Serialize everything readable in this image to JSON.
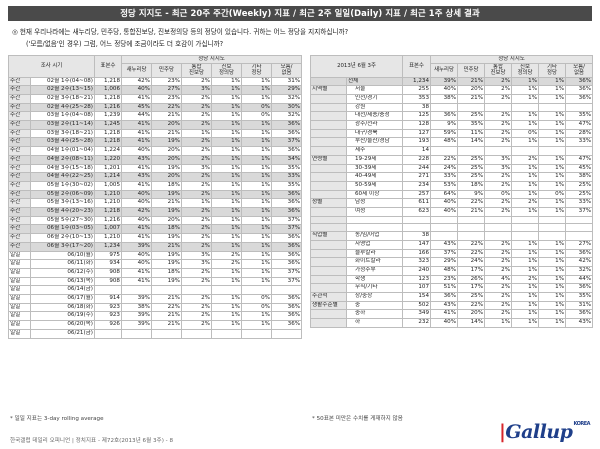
{
  "title": "정당 지지도 - 최근 20주 주간(Weekly) 지표 / 최근 2주 일일(Daily) 지표 / 최근 1주 상세 결과",
  "question": {
    "q1": "◎ 현재 우리나라에는 새누리당, 민주당, 통합진보당, 진보정의당 등의 정당이 있습니다. 귀하는 어느 정당을 지지하십니까?",
    "q2": "('모름/없음'인 경우) 그럼, 어느 정당에 조금이라도 더 호감이 가십니까?"
  },
  "left": {
    "head": {
      "period": "조사 시기",
      "base": "표본수",
      "parties": "정당 지지도",
      "p1": "새누리당",
      "p2": "민주당",
      "p3": "통합\n진보당",
      "p4": "진보\n정의당",
      "p5": "기타\n정당",
      "p6": "모름/\n없음"
    },
    "weekly": [
      [
        "주간",
        "02월 1주(04~08)",
        "1,218",
        "42%",
        "23%",
        "2%",
        "1%",
        "1%",
        "31%"
      ],
      [
        "주간",
        "02월 2주(13~15)",
        "1,006",
        "40%",
        "27%",
        "3%",
        "1%",
        "1%",
        "29%"
      ],
      [
        "주간",
        "02월 3주(18~21)",
        "1,218",
        "41%",
        "23%",
        "2%",
        "1%",
        "1%",
        "32%"
      ],
      [
        "주간",
        "02월 4주(25~28)",
        "1,216",
        "45%",
        "22%",
        "2%",
        "1%",
        "0%",
        "30%"
      ],
      [
        "주간",
        "03월 1주(04~08)",
        "1,239",
        "44%",
        "21%",
        "2%",
        "1%",
        "0%",
        "32%"
      ],
      [
        "주간",
        "03월 2주(11~14)",
        "1,245",
        "41%",
        "20%",
        "2%",
        "1%",
        "1%",
        "36%"
      ],
      [
        "주간",
        "03월 3주(18~21)",
        "1,218",
        "41%",
        "21%",
        "1%",
        "1%",
        "1%",
        "36%"
      ],
      [
        "주간",
        "03월 4주(25~28)",
        "1,218",
        "41%",
        "19%",
        "2%",
        "1%",
        "1%",
        "37%"
      ],
      [
        "주간",
        "04월 1주(01~04)",
        "1,224",
        "40%",
        "20%",
        "2%",
        "1%",
        "1%",
        "36%"
      ],
      [
        "주간",
        "04월 2주(08~11)",
        "1,220",
        "43%",
        "20%",
        "2%",
        "1%",
        "1%",
        "34%"
      ],
      [
        "주간",
        "04월 3주(15~18)",
        "1,201",
        "41%",
        "19%",
        "3%",
        "1%",
        "1%",
        "35%"
      ],
      [
        "주간",
        "04월 4주(22~25)",
        "1,214",
        "43%",
        "20%",
        "2%",
        "1%",
        "1%",
        "33%"
      ],
      [
        "주간",
        "05월 1주(30~02)",
        "1,005",
        "41%",
        "18%",
        "2%",
        "1%",
        "1%",
        "35%"
      ],
      [
        "주간",
        "05월 2주(06~09)",
        "1,210",
        "40%",
        "19%",
        "2%",
        "1%",
        "1%",
        "36%"
      ],
      [
        "주간",
        "05월 3주(13~16)",
        "1,210",
        "40%",
        "21%",
        "1%",
        "1%",
        "1%",
        "36%"
      ],
      [
        "주간",
        "05월 4주(20~23)",
        "1,218",
        "42%",
        "19%",
        "2%",
        "1%",
        "1%",
        "36%"
      ],
      [
        "주간",
        "05월 5주(27~30)",
        "1,216",
        "40%",
        "20%",
        "2%",
        "1%",
        "1%",
        "37%"
      ],
      [
        "주간",
        "06월 1주(03~05)",
        "1,007",
        "41%",
        "18%",
        "2%",
        "1%",
        "1%",
        "37%"
      ],
      [
        "주간",
        "06월 2주(10~13)",
        "1,210",
        "41%",
        "19%",
        "2%",
        "1%",
        "1%",
        "36%"
      ],
      [
        "주간",
        "06월 3주(17~20)",
        "1,234",
        "39%",
        "21%",
        "2%",
        "1%",
        "1%",
        "36%"
      ]
    ],
    "daily": [
      [
        "일일",
        "06/10(월)",
        "975",
        "40%",
        "19%",
        "3%",
        "2%",
        "1%",
        "36%"
      ],
      [
        "일일",
        "06/11(화)",
        "934",
        "40%",
        "19%",
        "3%",
        "2%",
        "1%",
        "36%"
      ],
      [
        "일일",
        "06/12(수)",
        "908",
        "41%",
        "18%",
        "2%",
        "1%",
        "1%",
        "37%"
      ],
      [
        "일일",
        "06/13(목)",
        "908",
        "41%",
        "19%",
        "2%",
        "1%",
        "1%",
        "37%"
      ],
      [
        "일일",
        "06/14(금)",
        "",
        "",
        "",
        "",
        "",
        "",
        ""
      ],
      [
        "일일",
        "06/17(월)",
        "914",
        "39%",
        "21%",
        "2%",
        "1%",
        "0%",
        "36%"
      ],
      [
        "일일",
        "06/18(화)",
        "923",
        "38%",
        "22%",
        "2%",
        "1%",
        "0%",
        "36%"
      ],
      [
        "일일",
        "06/19(수)",
        "923",
        "39%",
        "21%",
        "2%",
        "1%",
        "1%",
        "36%"
      ],
      [
        "일일",
        "06/20(목)",
        "926",
        "39%",
        "21%",
        "2%",
        "1%",
        "1%",
        "36%"
      ],
      [
        "일일",
        "06/21(금)",
        "",
        "",
        "",
        "",
        "",
        "",
        ""
      ]
    ]
  },
  "right": {
    "head": {
      "period": "2013년 6월 3주",
      "base": "표본수",
      "parties": "정당 지지도",
      "p1": "새누리당",
      "p2": "민주당",
      "p3": "통합\n진보당",
      "p4": "진보\n정의당",
      "p5": "기타\n정당",
      "p6": "모름/\n없음"
    },
    "rows": [
      [
        "",
        "전체",
        "1,234",
        "39%",
        "21%",
        "2%",
        "1%",
        "1%",
        "36%"
      ],
      [
        "지역별",
        "서울",
        "255",
        "40%",
        "20%",
        "2%",
        "1%",
        "1%",
        "36%"
      ],
      [
        "",
        "인천/경기",
        "353",
        "38%",
        "21%",
        "2%",
        "1%",
        "1%",
        "36%"
      ],
      [
        "",
        "강원",
        "38",
        "",
        "",
        "",
        "",
        "",
        ""
      ],
      [
        "",
        "대전/세종/충청",
        "125",
        "36%",
        "25%",
        "2%",
        "1%",
        "1%",
        "35%"
      ],
      [
        "",
        "광주/전라",
        "128",
        "9%",
        "35%",
        "2%",
        "1%",
        "1%",
        "47%"
      ],
      [
        "",
        "대구/경북",
        "127",
        "59%",
        "11%",
        "2%",
        "0%",
        "1%",
        "28%"
      ],
      [
        "",
        "부산/울산/경남",
        "193",
        "48%",
        "14%",
        "2%",
        "1%",
        "1%",
        "33%"
      ],
      [
        "",
        "제주",
        "14",
        "",
        "",
        "",
        "",
        "",
        ""
      ],
      [
        "연령별",
        "19-29세",
        "228",
        "22%",
        "25%",
        "3%",
        "2%",
        "1%",
        "47%"
      ],
      [
        "",
        "30-39세",
        "244",
        "24%",
        "25%",
        "3%",
        "1%",
        "1%",
        "45%"
      ],
      [
        "",
        "40-49세",
        "271",
        "33%",
        "25%",
        "2%",
        "1%",
        "1%",
        "38%"
      ],
      [
        "",
        "50-59세",
        "234",
        "53%",
        "18%",
        "2%",
        "1%",
        "1%",
        "25%"
      ],
      [
        "",
        "60세 이상",
        "257",
        "64%",
        "9%",
        "0%",
        "1%",
        "0%",
        "25%"
      ],
      [
        "성별",
        "남성",
        "611",
        "40%",
        "22%",
        "2%",
        "2%",
        "1%",
        "33%"
      ],
      [
        "",
        "여성",
        "623",
        "40%",
        "21%",
        "2%",
        "1%",
        "1%",
        "37%"
      ],
      [
        "",
        "",
        "",
        "",
        "",
        "",
        "",
        "",
        ""
      ],
      [
        "",
        "",
        "",
        "",
        "",
        "",
        "",
        "",
        ""
      ],
      [
        "직업별",
        "농/임/어업",
        "38",
        "",
        "",
        "",
        "",
        "",
        ""
      ],
      [
        "",
        "자영업",
        "147",
        "43%",
        "22%",
        "2%",
        "1%",
        "1%",
        "27%"
      ],
      [
        "",
        "블루칼라",
        "166",
        "37%",
        "22%",
        "2%",
        "1%",
        "1%",
        "36%"
      ],
      [
        "",
        "화이트칼라",
        "323",
        "29%",
        "24%",
        "2%",
        "1%",
        "1%",
        "42%"
      ],
      [
        "",
        "가정주부",
        "240",
        "48%",
        "17%",
        "2%",
        "1%",
        "1%",
        "32%"
      ],
      [
        "",
        "학생",
        "123",
        "23%",
        "26%",
        "4%",
        "2%",
        "1%",
        "44%"
      ],
      [
        "",
        "무직/기타",
        "107",
        "51%",
        "17%",
        "2%",
        "1%",
        "1%",
        "36%"
      ],
      [
        "주관적",
        "상/중상",
        "154",
        "36%",
        "25%",
        "2%",
        "1%",
        "1%",
        "35%"
      ],
      [
        "생활수준별",
        "중",
        "502",
        "43%",
        "22%",
        "2%",
        "1%",
        "1%",
        "31%"
      ],
      [
        "",
        "중하",
        "349",
        "41%",
        "20%",
        "2%",
        "1%",
        "1%",
        "36%"
      ],
      [
        "",
        "하",
        "232",
        "40%",
        "14%",
        "1%",
        "1%",
        "1%",
        "43%"
      ]
    ]
  },
  "footnote_left": "* 일일 지표는 3-day rolling average",
  "footnote_right": "* 50표본 미만은 수치를 게재하지 않음",
  "source": "한국갤럽 데일리 오피니언 | 정치지표 - 제72호(2013년 6월 3주) - 8",
  "logo": {
    "text": "Gallup",
    "sub": "KOREA"
  }
}
